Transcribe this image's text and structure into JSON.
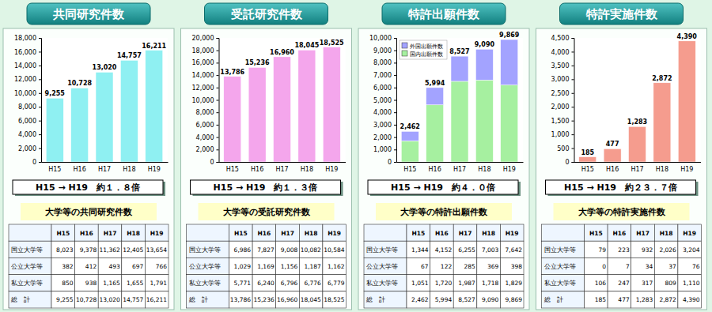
{
  "chart_data": [
    {
      "type": "bar",
      "title": "共同研究件数",
      "categories": [
        "H15",
        "H16",
        "H17",
        "H18",
        "H19"
      ],
      "values": [
        9255,
        10728,
        13020,
        14757,
        16211
      ],
      "value_labels": [
        "9,255",
        "10,728",
        "13,020",
        "14,757",
        "16,211"
      ],
      "data_labels": true,
      "color": "#8ff0f2",
      "ylim": [
        0,
        18000
      ],
      "yticks": [
        0,
        {
          "value": 2000,
          "label": "2,000"
        },
        {
          "value": 4000,
          "label": "4,000"
        },
        {
          "value": 6000,
          "label": "6,000"
        },
        {
          "value": 8000,
          "label": "8,000"
        },
        {
          "value": 10000,
          "label": "10,000"
        },
        {
          "value": 12000,
          "label": "12,000"
        },
        {
          "value": 14000,
          "label": "14,000"
        },
        {
          "value": 16000,
          "label": "16,000"
        },
        {
          "value": 18000,
          "label": "18,000"
        }
      ],
      "grid": false,
      "annotations": [
        "H15 → H19　約１．８倍"
      ]
    },
    {
      "type": "bar",
      "title": "受託研究件数",
      "categories": [
        "H15",
        "H16",
        "H17",
        "H18",
        "H19"
      ],
      "values": [
        13786,
        15236,
        16960,
        18045,
        18525
      ],
      "value_labels": [
        "13,786",
        "15,236",
        "16,960",
        "18,045",
        "18,525"
      ],
      "data_labels": true,
      "color": "#f4a6ec",
      "ylim": [
        0,
        20000
      ],
      "yticks": [
        0,
        {
          "value": 2000,
          "label": "2,000"
        },
        {
          "value": 4000,
          "label": "4,000"
        },
        {
          "value": 6000,
          "label": "6,000"
        },
        {
          "value": 8000,
          "label": "8,000"
        },
        {
          "value": 10000,
          "label": "10,000"
        },
        {
          "value": 12000,
          "label": "12,000"
        },
        {
          "value": 14000,
          "label": "14,000"
        },
        {
          "value": 16000,
          "label": "16,000"
        },
        {
          "value": 18000,
          "label": "18,000"
        },
        {
          "value": 20000,
          "label": "20,000"
        }
      ],
      "grid": false,
      "annotations": [
        "H15 → H19　約１．３倍"
      ]
    },
    {
      "type": "bar",
      "title": "特許出願件数",
      "stacked": true,
      "legend": "upper left",
      "categories": [
        "H15",
        "H16",
        "H17",
        "H18",
        "H19"
      ],
      "series": [
        {
          "name": "国内出願件数",
          "color": "#a6f0a0",
          "values": [
            1700,
            4600,
            6500,
            6600,
            6200
          ]
        },
        {
          "name": "外国出願件数",
          "color": "#a3a3ff",
          "values": [
            762,
            1394,
            2027,
            2490,
            3669
          ]
        }
      ],
      "totals": [
        2462,
        5994,
        8527,
        9090,
        9869
      ],
      "total_labels": [
        "2,462",
        "5,994",
        "8,527",
        "9,090",
        "9,869"
      ],
      "ylim": [
        0,
        10000
      ],
      "yticks": [
        0,
        {
          "value": 1000,
          "label": "1,000"
        },
        {
          "value": 2000,
          "label": "2,000"
        },
        {
          "value": 3000,
          "label": "3,000"
        },
        {
          "value": 4000,
          "label": "4,000"
        },
        {
          "value": 5000,
          "label": "5,000"
        },
        {
          "value": 6000,
          "label": "6,000"
        },
        {
          "value": 7000,
          "label": "7,000"
        },
        {
          "value": 8000,
          "label": "8,000"
        },
        {
          "value": 9000,
          "label": "9,000"
        },
        {
          "value": 10000,
          "label": "10,000"
        }
      ],
      "grid": false,
      "annotations": [
        "H15 → H19　約４．０倍"
      ]
    },
    {
      "type": "bar",
      "title": "特許実施件数",
      "categories": [
        "H15",
        "H16",
        "H17",
        "H18",
        "H19"
      ],
      "values": [
        185,
        477,
        1283,
        2872,
        4390
      ],
      "value_labels": [
        "185",
        "477",
        "1,283",
        "2,872",
        "4,390"
      ],
      "data_labels": true,
      "color": "#f59c8e",
      "ylim": [
        0,
        4500
      ],
      "yticks": [
        0,
        500,
        {
          "value": 1000,
          "label": "1,000"
        },
        {
          "value": 1500,
          "label": "1,500"
        },
        {
          "value": 2000,
          "label": "2,000"
        },
        {
          "value": 2500,
          "label": "2,500"
        },
        {
          "value": 3000,
          "label": "3,000"
        },
        {
          "value": 3500,
          "label": "3,500"
        },
        {
          "value": 4000,
          "label": "4,000"
        },
        {
          "value": 4500,
          "label": "4,500"
        }
      ],
      "grid": false,
      "annotations": [
        "H15 → H19　約２３．７倍"
      ]
    }
  ],
  "tables": [
    {
      "title": "大学等の共同研究件数",
      "header": [
        "",
        "H15",
        "H16",
        "H17",
        "H18",
        "H19"
      ],
      "rows": [
        [
          "国立大学等",
          "8,023",
          "9,378",
          "11,362",
          "12,405",
          "13,654"
        ],
        [
          "公立大学等",
          "382",
          "412",
          "493",
          "697",
          "766"
        ],
        [
          "私立大学等",
          "850",
          "938",
          "1,165",
          "1,655",
          "1,791"
        ],
        [
          "総　計",
          "9,255",
          "10,728",
          "13,020",
          "14,757",
          "16,211"
        ]
      ]
    },
    {
      "title": "大学等の受託研究件数",
      "header": [
        "",
        "H15",
        "H16",
        "H17",
        "H18",
        "H19"
      ],
      "rows": [
        [
          "国立大学等",
          "6,986",
          "7,827",
          "9,008",
          "10,082",
          "10,584"
        ],
        [
          "公立大学等",
          "1,029",
          "1,169",
          "1,156",
          "1,187",
          "1,162"
        ],
        [
          "私立大学等",
          "5,771",
          "6,240",
          "6,796",
          "6,776",
          "6,779"
        ],
        [
          "総　計",
          "13,786",
          "15,236",
          "16,960",
          "18,045",
          "18,525"
        ]
      ]
    },
    {
      "title": "大学等の特許出願件数",
      "header": [
        "",
        "H15",
        "H16",
        "H17",
        "H18",
        "H19"
      ],
      "rows": [
        [
          "国立大学等",
          "1,344",
          "4,152",
          "6,255",
          "7,003",
          "7,642"
        ],
        [
          "公立大学等",
          "67",
          "122",
          "285",
          "369",
          "398"
        ],
        [
          "私立大学等",
          "1,051",
          "1,720",
          "1,987",
          "1,718",
          "1,829"
        ],
        [
          "総　計",
          "2,462",
          "5,994",
          "8,527",
          "9,090",
          "9,869"
        ]
      ]
    },
    {
      "title": "大学等の特許実施件数",
      "header": [
        "",
        "H15",
        "H16",
        "H17",
        "H18",
        "H19"
      ],
      "rows": [
        [
          "国立大学等",
          "79",
          "223",
          "932",
          "2,026",
          "3,204"
        ],
        [
          "公立大学等",
          "0",
          "7",
          "34",
          "37",
          "76"
        ],
        [
          "私立大学等",
          "106",
          "247",
          "317",
          "809",
          "1,110"
        ],
        [
          "総　計",
          "185",
          "477",
          "1,283",
          "2,872",
          "4,390"
        ]
      ]
    }
  ]
}
